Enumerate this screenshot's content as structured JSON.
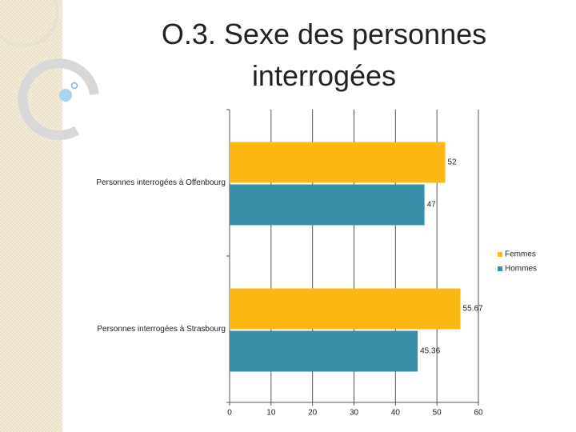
{
  "chart_data": {
    "type": "hbar",
    "title": "O.3. Sexe des personnes interrogées",
    "categories": [
      "Personnes interrogées à Offenbourg",
      "Personnes interrogées à Strasbourg"
    ],
    "series": [
      {
        "name": "Femmes",
        "color": "#FDB813",
        "values": [
          52,
          55.67
        ]
      },
      {
        "name": "Hommes",
        "color": "#3A8FA8",
        "values": [
          47,
          45.36
        ]
      }
    ],
    "xlim": [
      0,
      60
    ],
    "xticks": [
      0,
      10,
      20,
      30,
      40,
      50,
      60
    ],
    "grid": true,
    "legend": "right"
  }
}
